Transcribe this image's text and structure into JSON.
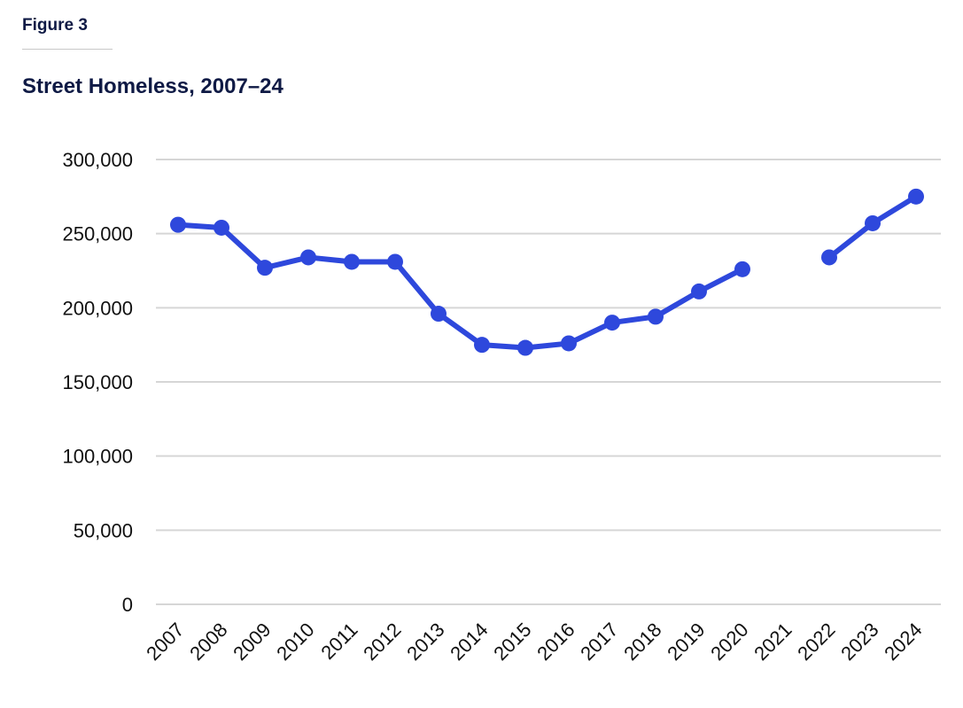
{
  "figure_label": "Figure 3",
  "chart_data": {
    "type": "line",
    "title": "Street Homeless, 2007–24",
    "xlabel": "",
    "ylabel": "",
    "categories": [
      "2007",
      "2008",
      "2009",
      "2010",
      "2011",
      "2012",
      "2013",
      "2014",
      "2015",
      "2016",
      "2017",
      "2018",
      "2019",
      "2020",
      "2021",
      "2022",
      "2023",
      "2024"
    ],
    "series": [
      {
        "name": "Street Homeless",
        "color": "#2e48dc",
        "values": [
          256000,
          254000,
          227000,
          234000,
          231000,
          231000,
          196000,
          175000,
          173000,
          176000,
          190000,
          194000,
          211000,
          226000,
          null,
          234000,
          257000,
          275000
        ]
      }
    ],
    "ylim": [
      0,
      300000
    ],
    "yticks": [
      0,
      50000,
      100000,
      150000,
      200000,
      250000,
      300000
    ],
    "ytick_labels": [
      "0",
      "50,000",
      "100,000",
      "150,000",
      "200,000",
      "250,000",
      "300,000"
    ],
    "grid": true,
    "legend": "none"
  }
}
